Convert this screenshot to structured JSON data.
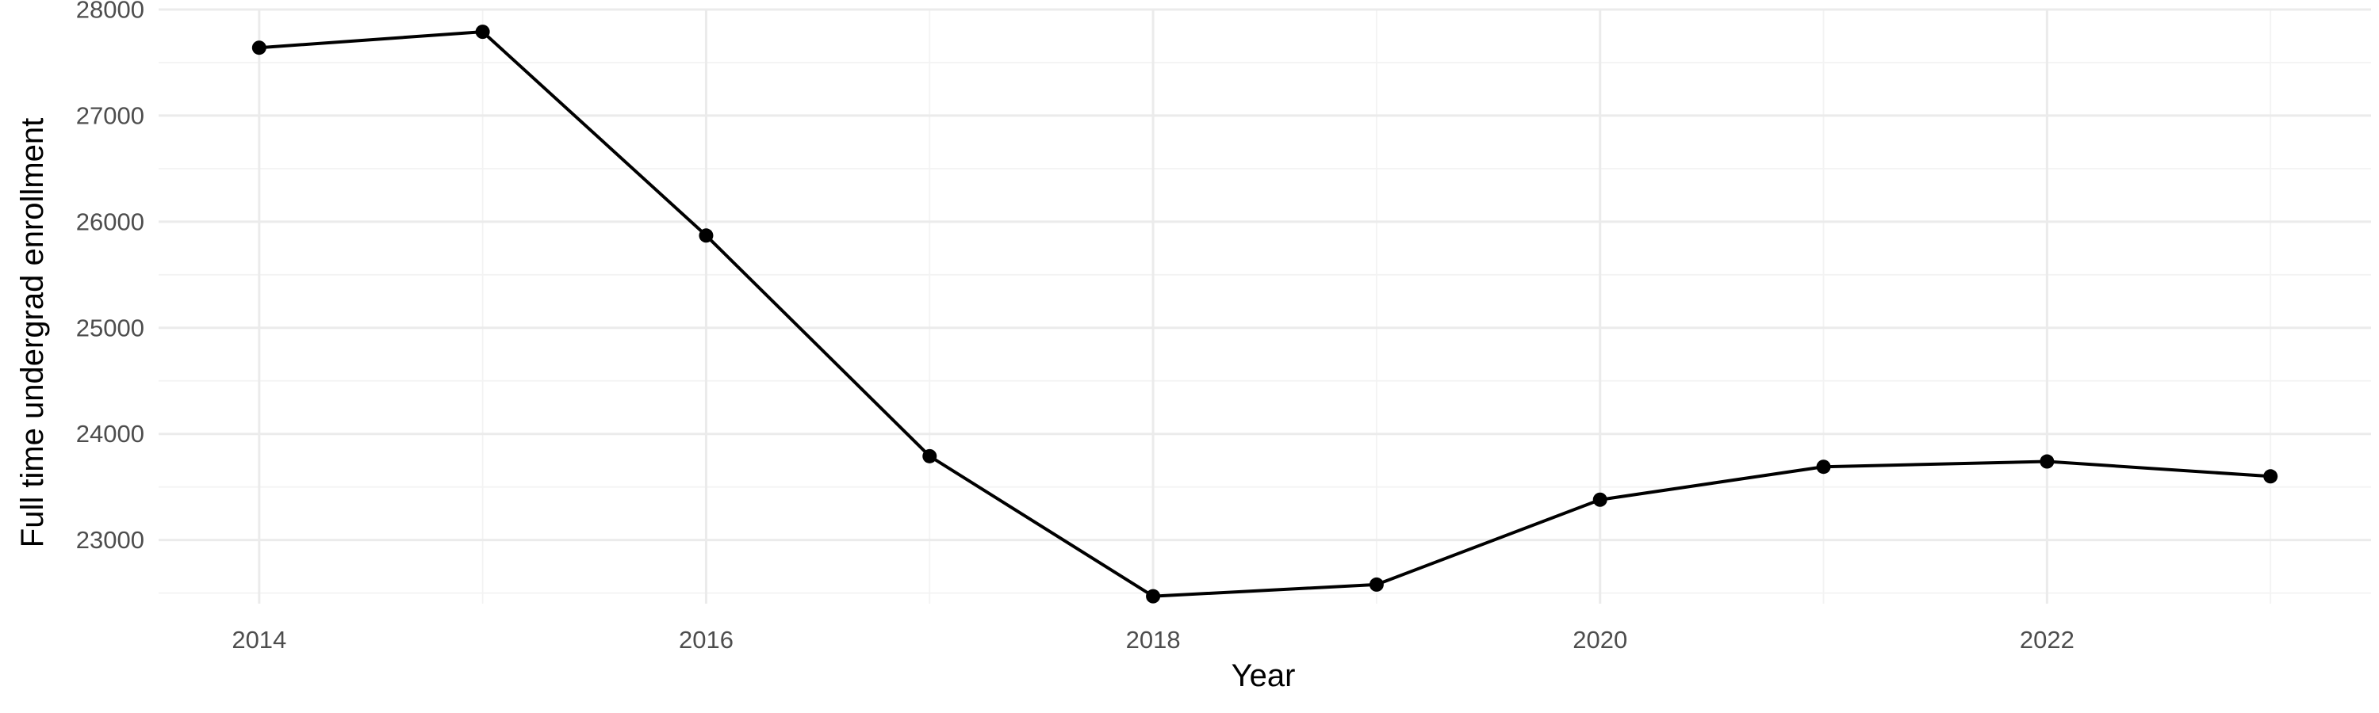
{
  "chart_data": {
    "type": "line",
    "title": "",
    "xlabel": "Year",
    "ylabel": "Full time undergrad enrollment",
    "x": [
      2014,
      2015,
      2016,
      2017,
      2018,
      2019,
      2020,
      2021,
      2022,
      2023
    ],
    "series": [
      {
        "values": [
          27640,
          27790,
          25870,
          23790,
          22470,
          22580,
          23380,
          23690,
          23740,
          23600
        ],
        "color": "#000000"
      }
    ],
    "xlim": [
      2013.55,
      2023.45
    ],
    "ylim": [
      22400,
      28000
    ],
    "x_ticks": [
      2014,
      2016,
      2018,
      2020,
      2022
    ],
    "x_tick_labels": [
      "2014",
      "2016",
      "2018",
      "2020",
      "2022"
    ],
    "x_minor_ticks": [
      2015,
      2017,
      2019,
      2021,
      2023
    ],
    "y_ticks": [
      23000,
      24000,
      25000,
      26000,
      27000,
      28000
    ],
    "y_tick_labels": [
      "23000",
      "24000",
      "25000",
      "26000",
      "27000",
      "28000"
    ],
    "y_minor_ticks": [
      22500,
      23500,
      24500,
      25500,
      26500,
      27500
    ],
    "grid": true,
    "legend": "none",
    "markers": true
  }
}
